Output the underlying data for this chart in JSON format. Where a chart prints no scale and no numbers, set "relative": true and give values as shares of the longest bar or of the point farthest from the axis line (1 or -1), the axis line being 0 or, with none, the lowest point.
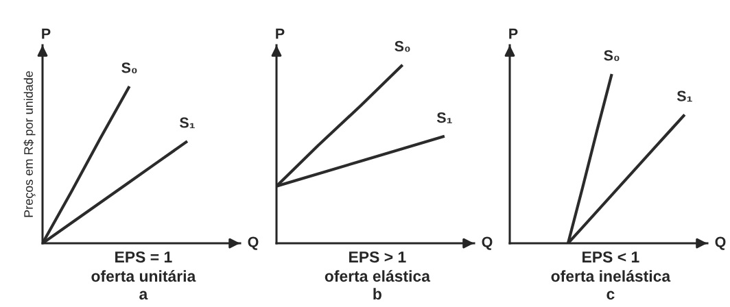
{
  "chart_data": [
    {
      "type": "line",
      "relative": true,
      "title": "EPS = 1",
      "subtitle": "oferta unitária",
      "xlabel": "Q",
      "ylabel": "P",
      "annotations": [
        "a",
        "Preços em R$ por unidade"
      ],
      "line_style": "solid",
      "categories": [
        null,
        null,
        null,
        null,
        null,
        null
      ],
      "series": [
        {
          "name": "S₀",
          "color": "#2b2b2b",
          "values": [
            0,
            0.33,
            0.67,
            1,
            null,
            null
          ]
        },
        {
          "name": "S₁",
          "color": "#2b2b2b",
          "values": [
            0,
            0.13,
            0.26,
            0.39,
            0.52,
            0.65
          ]
        }
      ]
    },
    {
      "type": "line",
      "relative": true,
      "title": "EPS > 1",
      "subtitle": "oferta elástica",
      "xlabel": "Q",
      "ylabel": "P",
      "annotations": [
        "b"
      ],
      "line_style": "solid",
      "categories": [
        null,
        null,
        null,
        null,
        null
      ],
      "series": [
        {
          "name": "S₀",
          "color": "#2b2b2b",
          "values": [
            0.32,
            0.55,
            0.77,
            1,
            null
          ]
        },
        {
          "name": "S₁",
          "color": "#2b2b2b",
          "values": [
            0.32,
            0.39,
            0.46,
            0.53,
            0.6
          ]
        }
      ]
    },
    {
      "type": "line",
      "relative": true,
      "title": "EPS < 1",
      "subtitle": "oferta inelástica",
      "xlabel": "Q",
      "ylabel": "P",
      "annotations": [
        "c"
      ],
      "line_style": "solid",
      "categories": [
        null,
        null,
        null,
        null,
        null,
        null,
        null,
        null,
        null,
        null,
        null,
        null,
        null
      ],
      "series": [
        {
          "name": "S₀",
          "color": "#2b2b2b",
          "values": [
            null,
            null,
            null,
            null,
            0,
            0.33,
            0.67,
            1,
            null,
            null,
            null,
            null,
            null
          ]
        },
        {
          "name": "S₁",
          "color": "#2b2b2b",
          "values": [
            null,
            null,
            null,
            null,
            0,
            0.095,
            0.19,
            0.285,
            0.38,
            0.475,
            0.57,
            0.665,
            0.76
          ]
        }
      ]
    }
  ]
}
